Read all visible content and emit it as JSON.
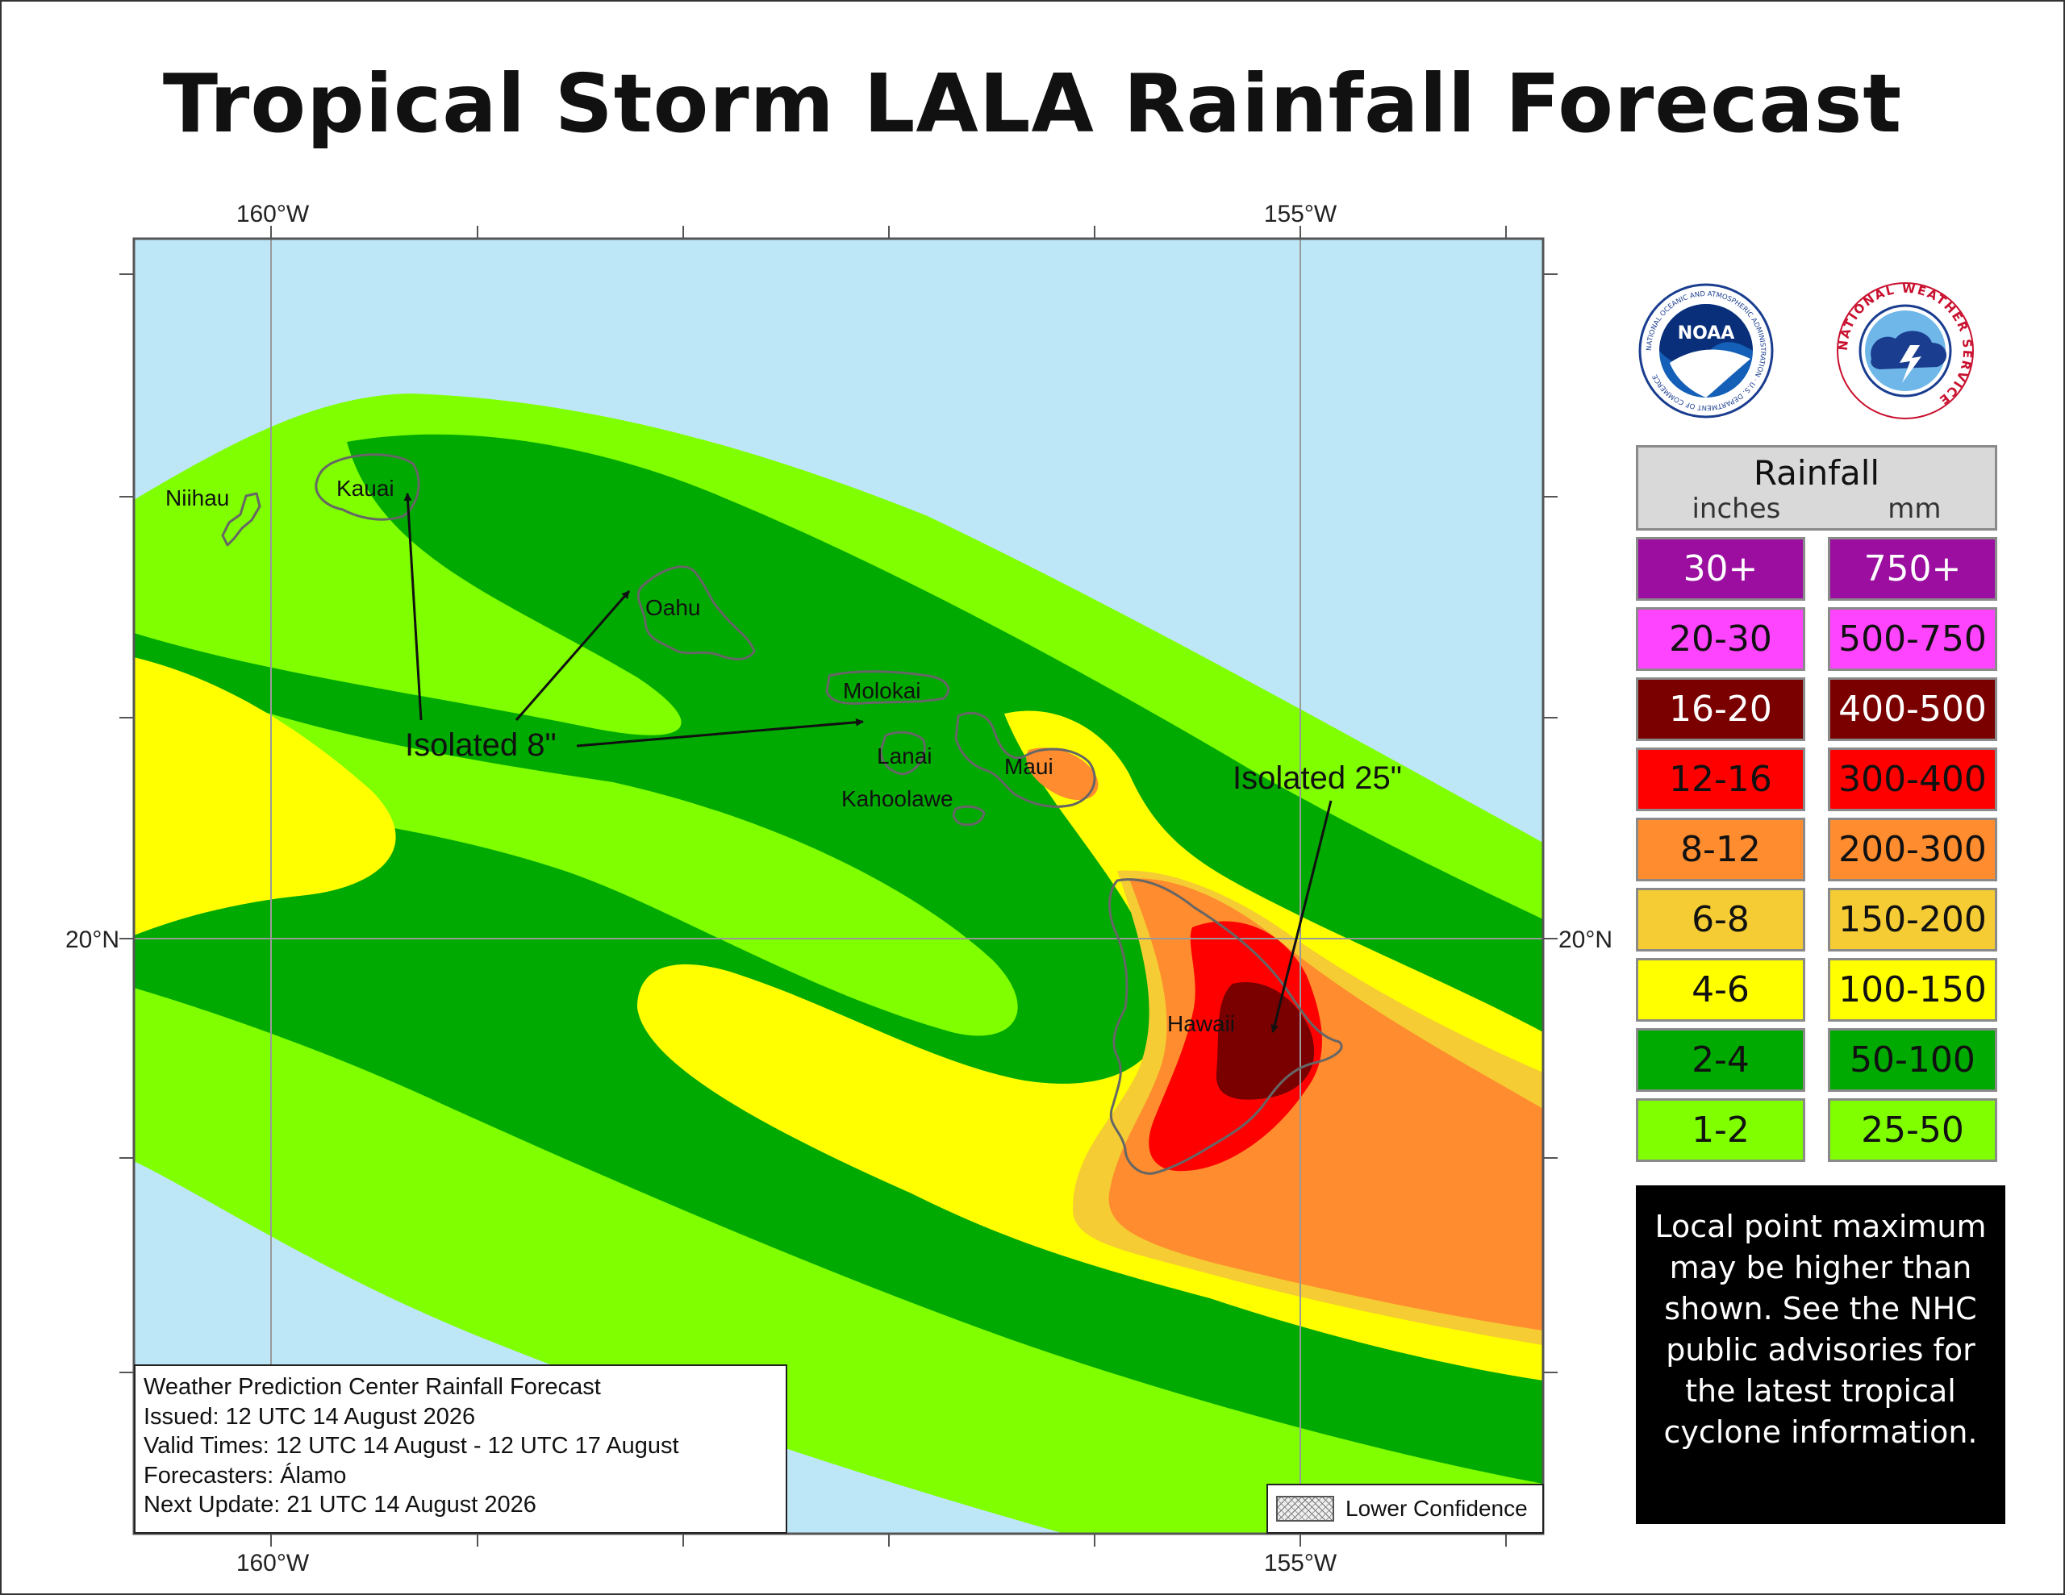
{
  "title": "Tropical Storm LALA Rainfall Forecast",
  "axes": {
    "lon_labels": [
      "160°W",
      "155°W"
    ],
    "lat_labels": [
      "20°N"
    ]
  },
  "islands": {
    "niihau": "Niihau",
    "kauai": "Kauai",
    "oahu": "Oahu",
    "molokai": "Molokai",
    "lanai": "Lanai",
    "maui": "Maui",
    "kahoolawe": "Kahoolawe",
    "hawaii": "Hawaii"
  },
  "annotations": {
    "isolated_8": "Isolated 8\"",
    "isolated_25": "Isolated 25\""
  },
  "info_box": {
    "line1": "Weather Prediction Center Rainfall Forecast",
    "line2": "Issued: 12 UTC 14 August 2026",
    "line3": "Valid Times: 12 UTC 14 August - 12 UTC 17 August",
    "line4": "Forecasters: Álamo",
    "line5": "Next Update: 21 UTC 14 August 2026"
  },
  "lower_confidence_label": "Lower Confidence",
  "logos": {
    "noaa_text": "NOAA",
    "noaa_ring": "NATIONAL OCEANIC AND ATMOSPHERIC ADMINISTRATION · U.S. DEPARTMENT OF COMMERCE",
    "nws_ring": "NATIONAL WEATHER SERVICE"
  },
  "legend": {
    "title": "Rainfall",
    "col_inches": "inches",
    "col_mm": "mm",
    "rows": [
      {
        "inches": "30+",
        "mm": "750+",
        "color": "#9b0ea0",
        "text": "#ffffff"
      },
      {
        "inches": "20-30",
        "mm": "500-750",
        "color": "#ff44ff",
        "text": "#111111"
      },
      {
        "inches": "16-20",
        "mm": "400-500",
        "color": "#7a0000",
        "text": "#ffffff"
      },
      {
        "inches": "12-16",
        "mm": "300-400",
        "color": "#ff0000",
        "text": "#111111"
      },
      {
        "inches": "8-12",
        "mm": "200-300",
        "color": "#ff8c2e",
        "text": "#111111"
      },
      {
        "inches": "6-8",
        "mm": "150-200",
        "color": "#f5cc33",
        "text": "#111111"
      },
      {
        "inches": "4-6",
        "mm": "100-150",
        "color": "#ffff00",
        "text": "#111111"
      },
      {
        "inches": "2-4",
        "mm": "50-100",
        "color": "#00aa00",
        "text": "#111111"
      },
      {
        "inches": "1-2",
        "mm": "25-50",
        "color": "#7fff00",
        "text": "#111111"
      }
    ]
  },
  "note": "Local point maximum may be higher than shown. See the NHC public advisories for the latest tropical cyclone information.",
  "colors": {
    "ocean": "#bde6f6",
    "band_1_2": "#7fff00",
    "band_2_4": "#00aa00",
    "band_4_6": "#ffff00",
    "band_6_8": "#f5cc33",
    "band_8_12": "#ff8c2e",
    "band_12_16": "#ff0000",
    "band_16_20": "#7a0000"
  }
}
